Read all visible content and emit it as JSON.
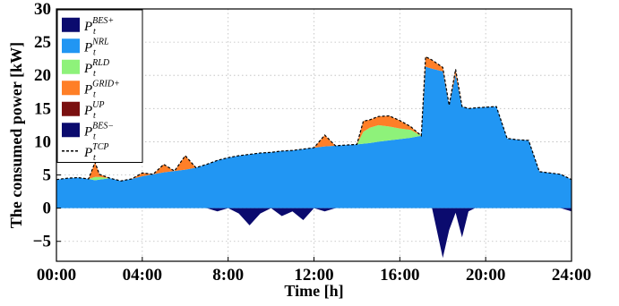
{
  "chart_data": {
    "type": "area",
    "xlabel": "Time [h]",
    "ylabel": "The consumed power [kW]",
    "xlim": [
      0,
      24
    ],
    "ylim": [
      -8,
      30
    ],
    "x_ticks": [
      "00:00",
      "04:00",
      "8:00",
      "12:00",
      "16:00",
      "20:00",
      "24:00"
    ],
    "x_tick_values": [
      0,
      4,
      8,
      12,
      16,
      20,
      24
    ],
    "y_ticks": [
      "−5",
      "0",
      "5",
      "10",
      "15",
      "20",
      "25",
      "30"
    ],
    "y_tick_values": [
      -5,
      0,
      5,
      10,
      15,
      20,
      25,
      30
    ],
    "grid": "dotted",
    "legend_position": "top-left",
    "x": [
      0,
      0.5,
      1,
      1.5,
      1.8,
      2,
      2.5,
      3,
      3.5,
      4,
      4.5,
      5,
      5.5,
      6,
      6.5,
      7,
      7.5,
      8,
      8.5,
      9,
      9.5,
      10,
      10.5,
      11,
      11.5,
      12,
      12.5,
      13,
      13.5,
      14,
      14.3,
      14.6,
      15,
      15.5,
      16,
      16.5,
      17,
      17.2,
      17.5,
      18,
      18.3,
      18.6,
      18.9,
      19.2,
      19.5,
      20,
      20.5,
      21,
      21.5,
      22,
      22.5,
      23,
      23.5,
      24
    ],
    "series": [
      {
        "name": "BES+",
        "color": "#0b0b6e",
        "values": [
          0,
          0,
          0,
          0,
          0,
          0,
          0,
          0,
          0,
          0,
          0,
          0,
          0,
          0,
          0,
          0,
          0,
          0,
          0,
          0,
          0,
          0,
          0,
          0,
          0,
          0,
          0,
          0,
          0,
          0,
          0,
          0,
          0,
          0,
          0,
          0,
          0,
          0,
          0,
          0,
          0,
          0,
          0,
          0,
          0,
          0,
          0,
          0,
          0,
          0,
          0,
          0,
          0,
          0
        ]
      },
      {
        "name": "NRL",
        "color": "#2196f3",
        "values": [
          4.3,
          4.5,
          4.6,
          4.4,
          4.2,
          4.3,
          4.5,
          4.1,
          4.4,
          4.8,
          5.1,
          5.4,
          5.6,
          5.8,
          6.1,
          6.6,
          7.2,
          7.6,
          7.9,
          8.1,
          8.3,
          8.4,
          8.6,
          8.7,
          8.9,
          9.1,
          9.3,
          9.4,
          9.5,
          9.6,
          9.7,
          9.8,
          10.0,
          10.2,
          10.4,
          10.6,
          10.9,
          21.3,
          21.0,
          20.6,
          15.5,
          20.1,
          15.3,
          15.0,
          15.1,
          15.2,
          15.3,
          10.5,
          10.3,
          10.2,
          5.5,
          5.3,
          5.1,
          4.3
        ]
      },
      {
        "name": "RLD",
        "color": "#8ef27a",
        "values": [
          0,
          0,
          0,
          0,
          0.5,
          0.4,
          0,
          0,
          0,
          0,
          0,
          0,
          0,
          0,
          0,
          0,
          0,
          0,
          0,
          0,
          0,
          0,
          0,
          0,
          0,
          0,
          0,
          0,
          0,
          0,
          1.8,
          2.3,
          2.5,
          2.1,
          1.6,
          1.2,
          0,
          0,
          0,
          0,
          0,
          0,
          0,
          0,
          0,
          0,
          0,
          0,
          0,
          0,
          0,
          0,
          0,
          0
        ]
      },
      {
        "name": "GRID+",
        "color": "#ff7f27",
        "values": [
          0,
          0,
          0,
          0,
          2.2,
          0.4,
          0,
          0,
          0,
          0.5,
          0,
          1.2,
          0,
          2.1,
          0,
          0,
          0,
          0,
          0,
          0,
          0,
          0,
          0,
          0,
          0,
          0,
          1.7,
          0,
          0,
          0,
          1.6,
          1.2,
          1.3,
          1.6,
          1.2,
          0.5,
          0,
          1.5,
          1.3,
          0.6,
          0,
          0.8,
          0,
          0,
          0,
          0,
          0,
          0,
          0,
          0,
          0,
          0,
          0,
          0
        ]
      },
      {
        "name": "UP",
        "color": "#7a1010",
        "values": [
          0,
          0,
          0,
          0,
          0,
          0,
          0,
          0,
          0,
          0,
          0,
          0,
          0,
          0,
          0,
          0,
          0,
          0,
          0,
          0,
          0,
          0,
          0,
          0,
          0,
          0,
          0,
          0,
          0,
          0,
          0,
          0,
          0,
          0,
          0,
          0,
          0,
          0,
          0,
          0,
          0,
          0,
          0,
          0,
          0,
          0,
          0,
          0,
          0,
          0,
          0,
          0,
          0,
          0
        ]
      },
      {
        "name": "BES−",
        "color": "#0b0b6e",
        "values": [
          0,
          0,
          0,
          0,
          0,
          0,
          0,
          0,
          0,
          0,
          0,
          0,
          0,
          0,
          0,
          0,
          -0.5,
          0,
          -0.8,
          -2.6,
          -0.8,
          0,
          -1.2,
          -0.5,
          -1.8,
          0,
          -0.5,
          0,
          0,
          0,
          0,
          0,
          0,
          0,
          0,
          0,
          0,
          0,
          0,
          -7.5,
          -3.3,
          -0.7,
          -4.4,
          -0.5,
          0,
          0,
          0,
          0,
          0,
          0,
          0,
          0,
          0,
          -0.5
        ]
      }
    ],
    "tcp_series": {
      "name": "TCP",
      "style": "dashed",
      "color": "#000000",
      "values": [
        4.3,
        4.5,
        4.6,
        4.4,
        6.9,
        5.1,
        4.5,
        4.1,
        4.4,
        5.3,
        5.1,
        6.6,
        5.6,
        7.9,
        6.1,
        6.6,
        7.2,
        7.6,
        7.9,
        8.1,
        8.3,
        8.4,
        8.6,
        8.7,
        8.9,
        9.1,
        11.0,
        9.4,
        9.5,
        9.6,
        13.1,
        13.3,
        13.8,
        13.9,
        13.2,
        12.3,
        10.9,
        22.8,
        22.3,
        21.2,
        15.5,
        20.9,
        15.3,
        15.0,
        15.1,
        15.2,
        15.3,
        10.5,
        10.3,
        10.2,
        5.5,
        5.3,
        5.1,
        4.3
      ]
    },
    "legend": [
      {
        "base": "P",
        "sub": "t",
        "sup": "BES+",
        "swatch": "fill",
        "color": "#0b0b6e"
      },
      {
        "base": "P",
        "sub": "t",
        "sup": "NRL",
        "swatch": "fill",
        "color": "#2196f3"
      },
      {
        "base": "P",
        "sub": "t",
        "sup": "RLD",
        "swatch": "fill",
        "color": "#8ef27a"
      },
      {
        "base": "P",
        "sub": "t",
        "sup": "GRID+",
        "swatch": "fill",
        "color": "#ff7f27"
      },
      {
        "base": "P",
        "sub": "t",
        "sup": "UP",
        "swatch": "fill",
        "color": "#7a1010"
      },
      {
        "base": "P",
        "sub": "t",
        "sup": "BES−",
        "swatch": "fill",
        "color": "#0b0b6e"
      },
      {
        "base": "P",
        "sub": "t",
        "sup": "TCP",
        "swatch": "dashed",
        "color": "#000000"
      }
    ]
  }
}
